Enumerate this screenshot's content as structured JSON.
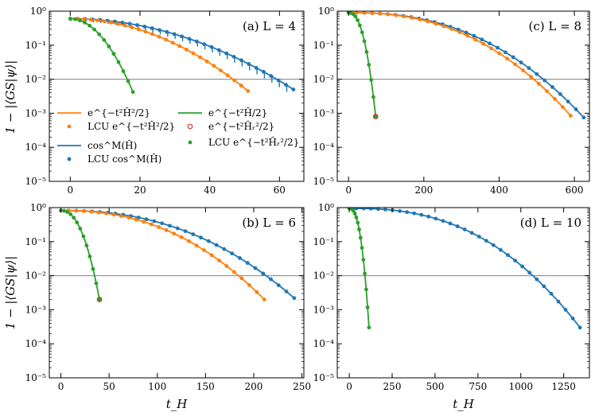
{
  "figure": {
    "ylabel": "1 − |⟨GS|ψ⟩|",
    "xlabel": "t_H",
    "ytick_labels": [
      "10⁰",
      "10⁻¹",
      "10⁻²",
      "10⁻³",
      "10⁻⁴",
      "10⁻⁵"
    ],
    "colors": {
      "orange": "#ff7f0e",
      "blue": "#1f77b4",
      "green": "#2ca02c",
      "red": "#d62728",
      "hline": "#808080"
    }
  },
  "legend": [
    {
      "label": "e^{−t²Ĥ²/2}",
      "style": "line",
      "color": "#ff7f0e"
    },
    {
      "label": "LCU e^{−t²Ĥ²/2}",
      "style": "dot",
      "color": "#ff7f0e"
    },
    {
      "label": "cos^M(Ĥ)",
      "style": "line",
      "color": "#1f77b4"
    },
    {
      "label": "LCU cos^M(Ĥ)",
      "style": "dot",
      "color": "#1f77b4"
    },
    {
      "label": "e^{−t²Ĥ/2}",
      "style": "line",
      "color": "#2ca02c"
    },
    {
      "label": "e^{−t²Ĥᵣ²/2}",
      "style": "ring",
      "color": "#d62728"
    },
    {
      "label": "LCU e^{−t²Ĥᵣ²/2}",
      "style": "dot",
      "color": "#2ca02c"
    }
  ],
  "chart_data": [
    {
      "id": "a",
      "title": "(a) L = 4",
      "type": "line",
      "yscale": "log",
      "xlim": [
        -6,
        67
      ],
      "ylim": [
        1e-05,
        1
      ],
      "xticks": [
        0,
        20,
        40,
        60
      ],
      "hline": 0.01,
      "series": [
        {
          "name": "cos^M(Ĥ)",
          "color": "#1f77b4",
          "start": 0.6,
          "end_x": 64,
          "end_y": 0.005,
          "p": 2,
          "staircase": true,
          "dots": 30
        },
        {
          "name": "e^{−t²Ĥ²/2}",
          "color": "#ff7f0e",
          "start": 0.6,
          "end_x": 51,
          "end_y": 0.0045,
          "p": 2,
          "dots": 26
        },
        {
          "name": "e^{−t²Ĥ/2}",
          "color": "#2ca02c",
          "start": 0.6,
          "end_x": 18,
          "end_y": 0.0042,
          "p": 2,
          "dots": 13
        }
      ]
    },
    {
      "id": "c",
      "title": "(c) L = 8",
      "type": "line",
      "yscale": "log",
      "xlim": [
        -30,
        640
      ],
      "ylim": [
        1e-05,
        1
      ],
      "xticks": [
        0,
        200,
        400,
        600
      ],
      "hline": 0.01,
      "series": [
        {
          "name": "cos^M(Ĥ)",
          "color": "#1f77b4",
          "start": 0.9,
          "end_x": 625,
          "end_y": 0.00075,
          "p": 2.4,
          "dots": 30
        },
        {
          "name": "e^{−t²Ĥ²/2}",
          "color": "#ff7f0e",
          "start": 0.9,
          "end_x": 590,
          "end_y": 0.00085,
          "p": 2.4,
          "dots": 28
        },
        {
          "name": "e^{−t²Ĥ/2}",
          "color": "#2ca02c",
          "start": 0.9,
          "end_x": 72,
          "end_y": 0.0008,
          "p": 2.4,
          "dots": 12
        }
      ]
    },
    {
      "id": "b",
      "title": "(b) L = 6",
      "type": "line",
      "yscale": "log",
      "xlim": [
        -12,
        252
      ],
      "ylim": [
        1e-05,
        1
      ],
      "xticks": [
        0,
        50,
        100,
        150,
        200,
        250
      ],
      "hline": 0.01,
      "series": [
        {
          "name": "cos^M(Ĥ)",
          "color": "#1f77b4",
          "start": 0.82,
          "end_x": 242,
          "end_y": 0.0022,
          "p": 2.3,
          "dots": 30
        },
        {
          "name": "e^{−t²Ĥ²/2}",
          "color": "#ff7f0e",
          "start": 0.82,
          "end_x": 211,
          "end_y": 0.002,
          "p": 2.3,
          "dots": 27
        },
        {
          "name": "e^{−t²Ĥ/2}",
          "color": "#2ca02c",
          "start": 0.82,
          "end_x": 40,
          "end_y": 0.002,
          "p": 2.3,
          "dots": 12
        }
      ]
    },
    {
      "id": "d",
      "title": "(d) L = 10",
      "type": "line",
      "yscale": "log",
      "xlim": [
        -70,
        1400
      ],
      "ylim": [
        1e-05,
        1
      ],
      "xticks": [
        0,
        250,
        500,
        750,
        1000,
        1250
      ],
      "hline": 0.01,
      "series": [
        {
          "name": "cos^M(Ĥ)",
          "color": "#1f77b4",
          "start": 0.95,
          "end_x": 1345,
          "end_y": 0.0003,
          "p": 2.5,
          "dots": 32
        },
        {
          "name": "e^{−t²Ĥ/2}",
          "color": "#2ca02c",
          "start": 0.95,
          "end_x": 115,
          "end_y": 0.0003,
          "p": 2.5,
          "dots": 14
        }
      ]
    }
  ]
}
